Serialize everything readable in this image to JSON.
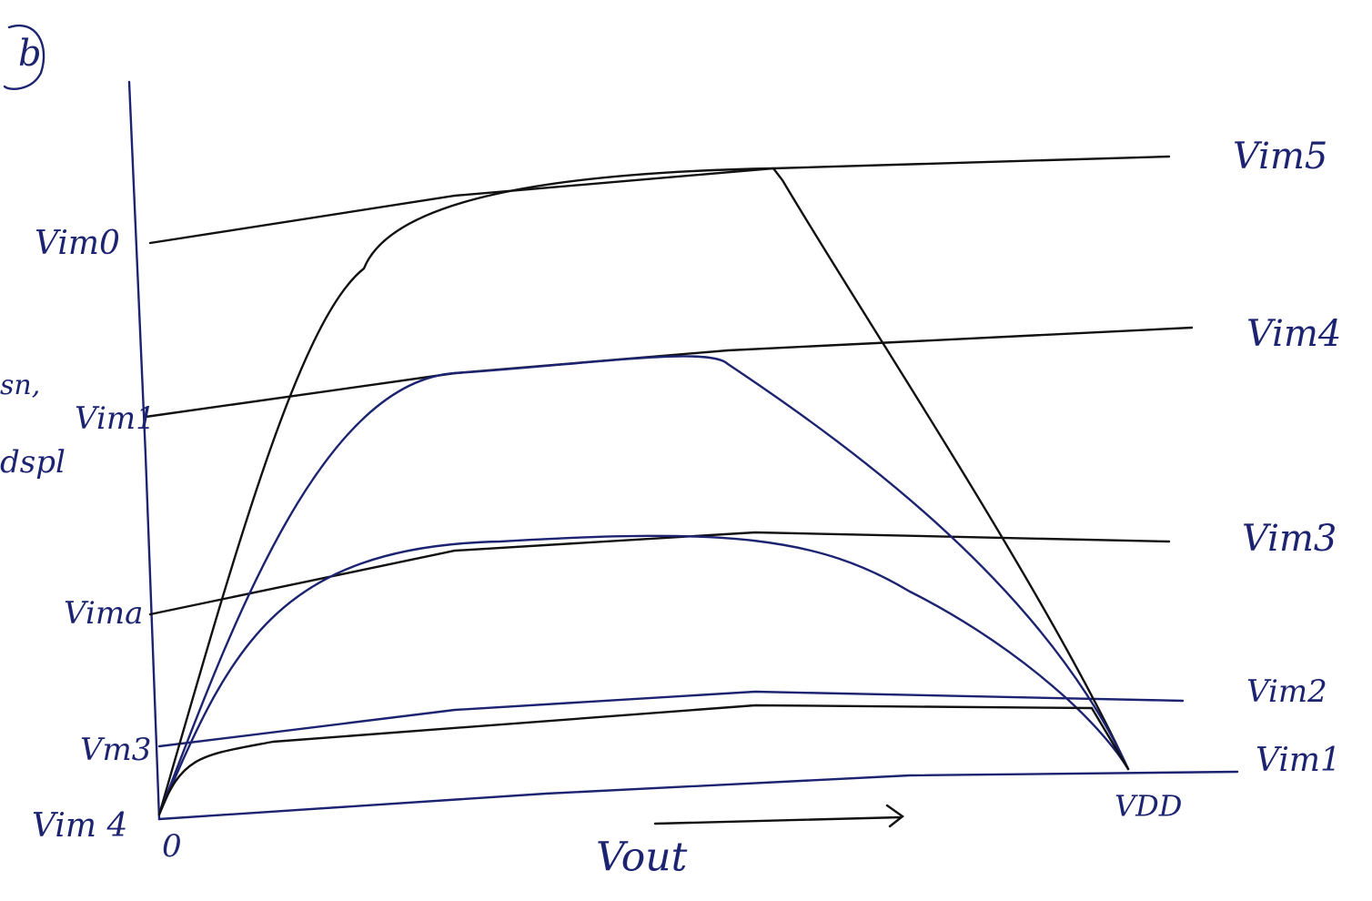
{
  "panel_label": "b",
  "left_labels": [
    "Vim0",
    "Vim1",
    "Vima",
    "Vm3",
    "Vim 4"
  ],
  "side_notes": [
    "sn,",
    "dspl"
  ],
  "right_labels": [
    "Vim5",
    "Vim4",
    "Vim3",
    "Vim2",
    "Vim1"
  ],
  "origin_label": "0",
  "x_axis_label": "Vout",
  "x_end_label": "VDD"
}
